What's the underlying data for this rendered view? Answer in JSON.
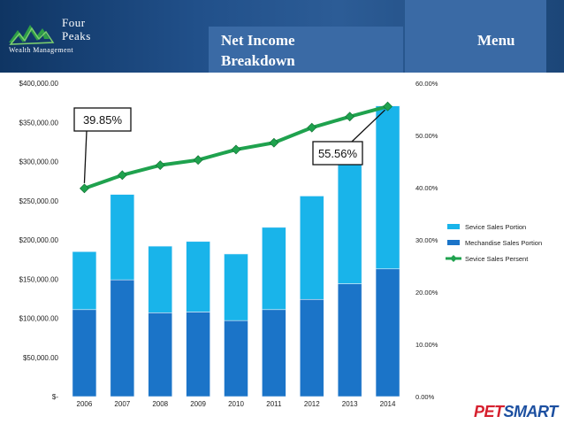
{
  "header": {
    "logo": {
      "line1": "Four",
      "line2": "Peaks",
      "tagline": "Wealth Management"
    },
    "title": "Net Income Breakdown",
    "menu_label": "Menu"
  },
  "footer": {
    "brand_part1": "PET",
    "brand_part2": "SMART"
  },
  "colors": {
    "service": "#19b4ea",
    "merchandise": "#1b74c8",
    "line": "#1fa24e",
    "header": "#21508a"
  },
  "chart_data": {
    "type": "bar",
    "stacked": true,
    "categories": [
      "2006",
      "2007",
      "2008",
      "2009",
      "2010",
      "2011",
      "2012",
      "2013",
      "2014"
    ],
    "series": [
      {
        "name": "Mechandise Sales Portion",
        "values": [
          111000,
          149000,
          107000,
          108000,
          97000,
          111000,
          124000,
          144000,
          163000
        ]
      },
      {
        "name": "Sevice Sales Portion",
        "values": [
          74000,
          109000,
          85000,
          90000,
          85000,
          105000,
          132000,
          162000,
          208000
        ]
      },
      {
        "name": "Sevice Sales Persent",
        "type": "line",
        "axis": "right",
        "values": [
          39.85,
          42.4,
          44.3,
          45.3,
          47.3,
          48.6,
          51.5,
          53.6,
          55.56
        ]
      }
    ],
    "y_left": {
      "min": 0,
      "max": 400000,
      "ticks": [
        "$-",
        "$50,000.00",
        "$100,000.00",
        "$150,000.00",
        "$200,000.00",
        "$250,000.00",
        "$300,000.00",
        "$350,000.00",
        "$400,000.00"
      ]
    },
    "y_right": {
      "min": 0,
      "max": 60,
      "ticks": [
        "0.00%",
        "10.00%",
        "20.00%",
        "30.00%",
        "40.00%",
        "50.00%",
        "60.00%"
      ]
    },
    "legend_position": "right",
    "legend": [
      "Sevice Sales Portion",
      "Mechandise Sales Portion",
      "Sevice Sales Persent"
    ],
    "annotations": [
      {
        "text": "39.85%",
        "category": "2006"
      },
      {
        "text": "55.56%",
        "category": "2014"
      }
    ],
    "grid": false
  }
}
